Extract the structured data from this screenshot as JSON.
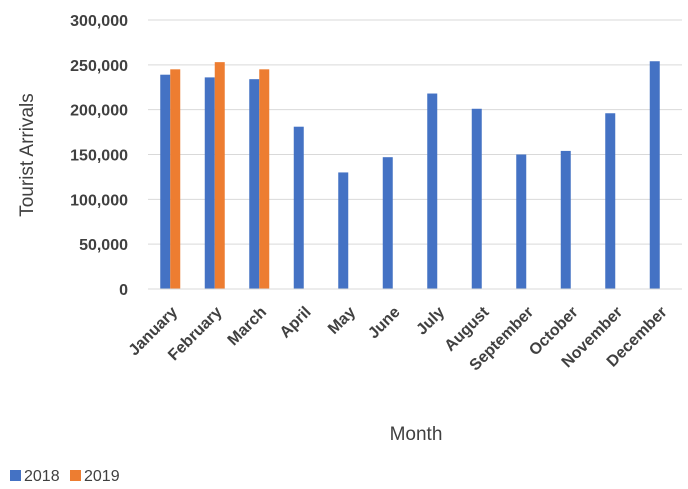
{
  "chart_data": {
    "type": "bar",
    "categories": [
      "January",
      "February",
      "March",
      "April",
      "May",
      "June",
      "July",
      "August",
      "September",
      "October",
      "November",
      "December"
    ],
    "series": [
      {
        "name": "2018",
        "color": "#4472c4",
        "values": [
          239000,
          236000,
          234000,
          181000,
          130000,
          147000,
          218000,
          201000,
          150000,
          154000,
          196000,
          254000
        ]
      },
      {
        "name": "2019",
        "color": "#ed7d31",
        "values": [
          245000,
          253000,
          245000,
          null,
          null,
          null,
          null,
          null,
          null,
          null,
          null,
          null
        ]
      }
    ],
    "title": "",
    "xlabel": "Month",
    "ylabel": "Tourist Arrivals",
    "ylim": [
      0,
      300000
    ],
    "yticks": [
      0,
      50000,
      100000,
      150000,
      200000,
      250000,
      300000
    ],
    "ytick_labels": [
      "0",
      "50,000",
      "100,000",
      "150,000",
      "200,000",
      "250,000",
      "300,000"
    ],
    "grid": true,
    "legend_position": "bottom-left"
  }
}
